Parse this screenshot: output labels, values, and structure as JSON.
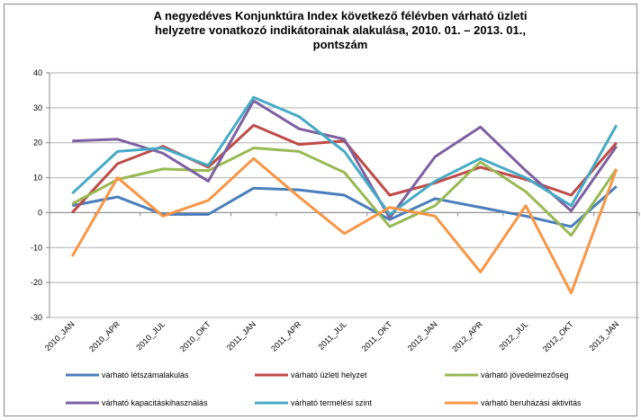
{
  "chart_data": {
    "type": "line",
    "title": [
      "A negyedéves Konjunktúra Index következő félévben várható üzleti",
      "helyzetre vonatkozó indikátorainak alakulása, 2010. 01. – 2013. 01.,",
      "pontszám"
    ],
    "categories": [
      "2010_JAN",
      "2010_APR",
      "2010_JUL",
      "2010_OKT",
      "2011_JAN",
      "2011_APR",
      "2011_JUL",
      "2011_OKT",
      "2012_JAN",
      "2012_APR",
      "2012_JUL",
      "2012_OKT",
      "2013_JAN"
    ],
    "ylim": [
      -30,
      40
    ],
    "yticks": [
      -30,
      -20,
      -10,
      0,
      10,
      20,
      30,
      40
    ],
    "grid": true,
    "legend": "bottom",
    "series": [
      {
        "name": "várható létszámalakulás",
        "color": "#4a7ebb",
        "values": [
          2,
          4.5,
          -0.5,
          -0.5,
          7,
          6.5,
          5,
          -2,
          4,
          1.5,
          -1,
          -4,
          7.5
        ]
      },
      {
        "name": "várható üzleti helyzet",
        "color": "#be4b48",
        "values": [
          0,
          14,
          19,
          13,
          25,
          19.5,
          20.5,
          5,
          8.5,
          13,
          9.5,
          5,
          20
        ]
      },
      {
        "name": "várható jövedelmezőség",
        "color": "#98b954",
        "values": [
          2.5,
          9.5,
          12.5,
          12,
          18.5,
          17.5,
          11.5,
          -4,
          2,
          14.5,
          6,
          -6.5,
          12.5
        ]
      },
      {
        "name": "várható kapacitáskihasználás",
        "color": "#7d60a0",
        "values": [
          20.5,
          21,
          17,
          9,
          32,
          24,
          21,
          -1.5,
          16,
          24.5,
          12,
          0.5,
          19
        ]
      },
      {
        "name": "várható termelési szint",
        "color": "#46aac5",
        "values": [
          5.5,
          17.5,
          18.5,
          13.5,
          33,
          27.5,
          17.5,
          -0.5,
          9,
          15.5,
          10,
          2,
          25
        ]
      },
      {
        "name": "várható beruházási  aktivitás",
        "color": "#f79646",
        "values": [
          -12.5,
          10,
          -1,
          3.5,
          15.5,
          4.5,
          -6,
          1.5,
          -1,
          -17,
          2,
          -23,
          12.5
        ]
      }
    ]
  }
}
